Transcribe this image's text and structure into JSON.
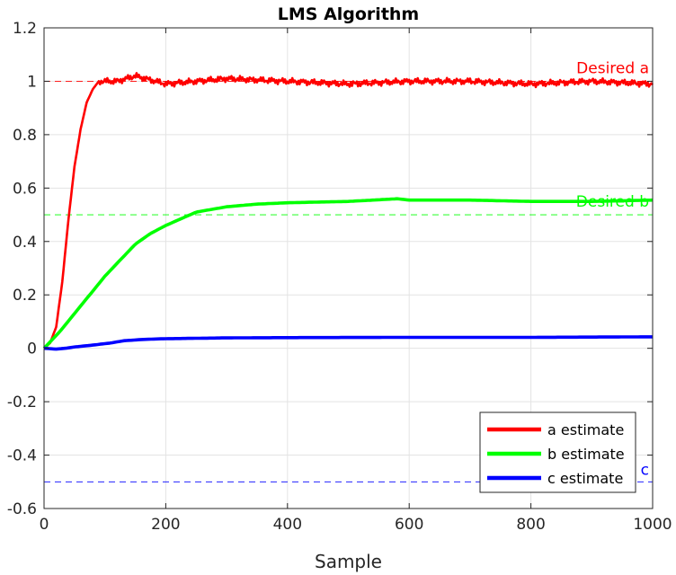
{
  "chart_data": {
    "type": "line",
    "title": "LMS Algorithm",
    "xlabel": "Sample",
    "ylabel": "",
    "xlim": [
      0,
      1000
    ],
    "ylim": [
      -0.6,
      1.2
    ],
    "xticks": [
      0,
      200,
      400,
      600,
      800,
      1000
    ],
    "xtick_labels": [
      "0",
      "200",
      "400",
      "600",
      "800",
      "1000"
    ],
    "yticks": [
      -0.6,
      -0.4,
      -0.2,
      0,
      0.2,
      0.4,
      0.6,
      0.8,
      1,
      1.2
    ],
    "ytick_labels": [
      "-0.6",
      "-0.4",
      "-0.2",
      "0",
      "0.2",
      "0.4",
      "0.6",
      "0.8",
      "1",
      "1.2"
    ],
    "grid": true,
    "legend_position": "bottom-right",
    "series": [
      {
        "name": "a estimate",
        "color": "#ff0000",
        "x": [
          0,
          10,
          20,
          30,
          40,
          50,
          60,
          70,
          80,
          90,
          100,
          120,
          150,
          200,
          250,
          300,
          400,
          500,
          600,
          700,
          800,
          900,
          1000
        ],
        "y": [
          0,
          0.02,
          0.08,
          0.25,
          0.48,
          0.68,
          0.82,
          0.92,
          0.97,
          1.0,
          1.0,
          1.0,
          1.02,
          0.99,
          1.0,
          1.01,
          1.0,
          0.99,
          1.0,
          1.0,
          0.99,
          1.0,
          0.99
        ]
      },
      {
        "name": "b estimate",
        "color": "#00ff00",
        "x": [
          0,
          25,
          50,
          75,
          100,
          125,
          150,
          175,
          200,
          250,
          300,
          350,
          400,
          500,
          580,
          600,
          700,
          800,
          900,
          1000
        ],
        "y": [
          0,
          0.06,
          0.13,
          0.2,
          0.27,
          0.33,
          0.39,
          0.43,
          0.46,
          0.51,
          0.53,
          0.54,
          0.545,
          0.55,
          0.56,
          0.555,
          0.555,
          0.55,
          0.55,
          0.555
        ]
      },
      {
        "name": "c estimate",
        "color": "#0000ff",
        "x": [
          0,
          20,
          35,
          50,
          80,
          110,
          130,
          160,
          200,
          300,
          400,
          600,
          800,
          1000
        ],
        "y": [
          0,
          -0.003,
          0,
          0.005,
          0.012,
          0.02,
          0.028,
          0.033,
          0.036,
          0.039,
          0.04,
          0.041,
          0.041,
          0.043
        ]
      }
    ],
    "reference_lines": [
      {
        "label": "Desired a",
        "value": 1.0,
        "color": "#ff0000"
      },
      {
        "label": "Desired b",
        "value": 0.5,
        "color": "#00ff00"
      },
      {
        "label": "c",
        "value": -0.5,
        "color": "#0000ff"
      }
    ]
  }
}
